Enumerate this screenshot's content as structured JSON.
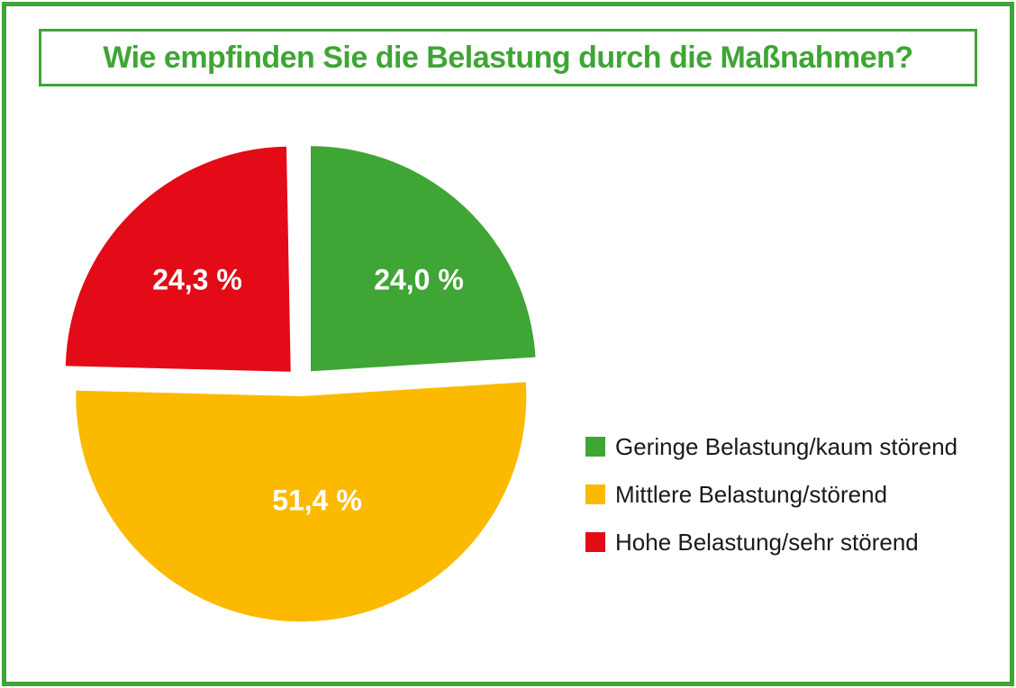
{
  "frame": {
    "border_color": "#3FA535"
  },
  "chart_data": {
    "type": "pie",
    "title": "Wie empfinden Sie die Belastung durch die Maßnahmen?",
    "title_color": "#3FA535",
    "slices": [
      {
        "label": "Geringe Belastung/kaum störend",
        "value_pct": 24.0,
        "display_value": "24,0 %",
        "color": "#3FA535"
      },
      {
        "label": "Mittlere Belastung/störend",
        "value_pct": 51.4,
        "display_value": "51,4 %",
        "color": "#FBBA00"
      },
      {
        "label": "Hohe Belastung/sehr störend",
        "value_pct": 24.3,
        "display_value": "24,3 %",
        "color": "#E30B17"
      }
    ],
    "start_angle_deg": 0,
    "direction": "clockwise",
    "exploded": true,
    "slice_label_color": "#FFFFFF",
    "legend_position": "right",
    "legend_text_color": "#1A1A1A"
  }
}
